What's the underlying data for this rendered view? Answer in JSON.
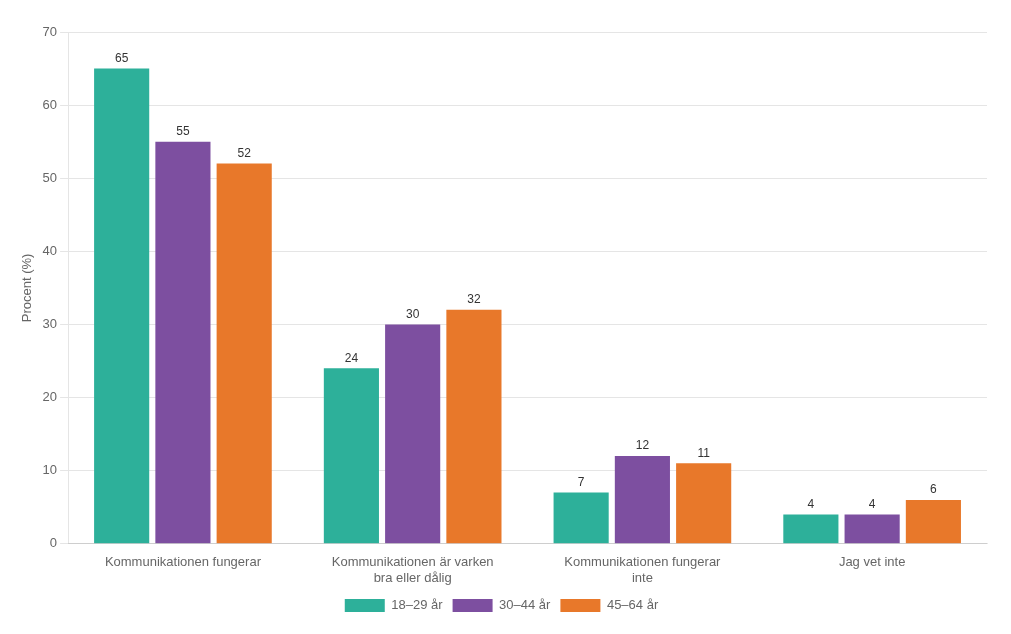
{
  "chart_data": {
    "type": "bar",
    "categories": [
      "Kommunikationen fungerar",
      "Kommunikationen är varken\nbra eller dålig",
      "Kommunikationen fungerar\ninte",
      "Jag vet inte"
    ],
    "series": [
      {
        "name": "18–29 år",
        "color": "#2db09a",
        "values": [
          65,
          24,
          7,
          4
        ]
      },
      {
        "name": "30–44 år",
        "color": "#7d4fa0",
        "values": [
          55,
          30,
          12,
          4
        ]
      },
      {
        "name": "45–64 år",
        "color": "#e8782a",
        "values": [
          52,
          32,
          11,
          6
        ]
      }
    ],
    "ylabel": "Procent (%)",
    "ylim": [
      0,
      70
    ],
    "yticks": [
      0,
      10,
      20,
      30,
      40,
      50,
      60,
      70
    ],
    "grid": true,
    "legend": "bottom",
    "data_labels": true
  }
}
